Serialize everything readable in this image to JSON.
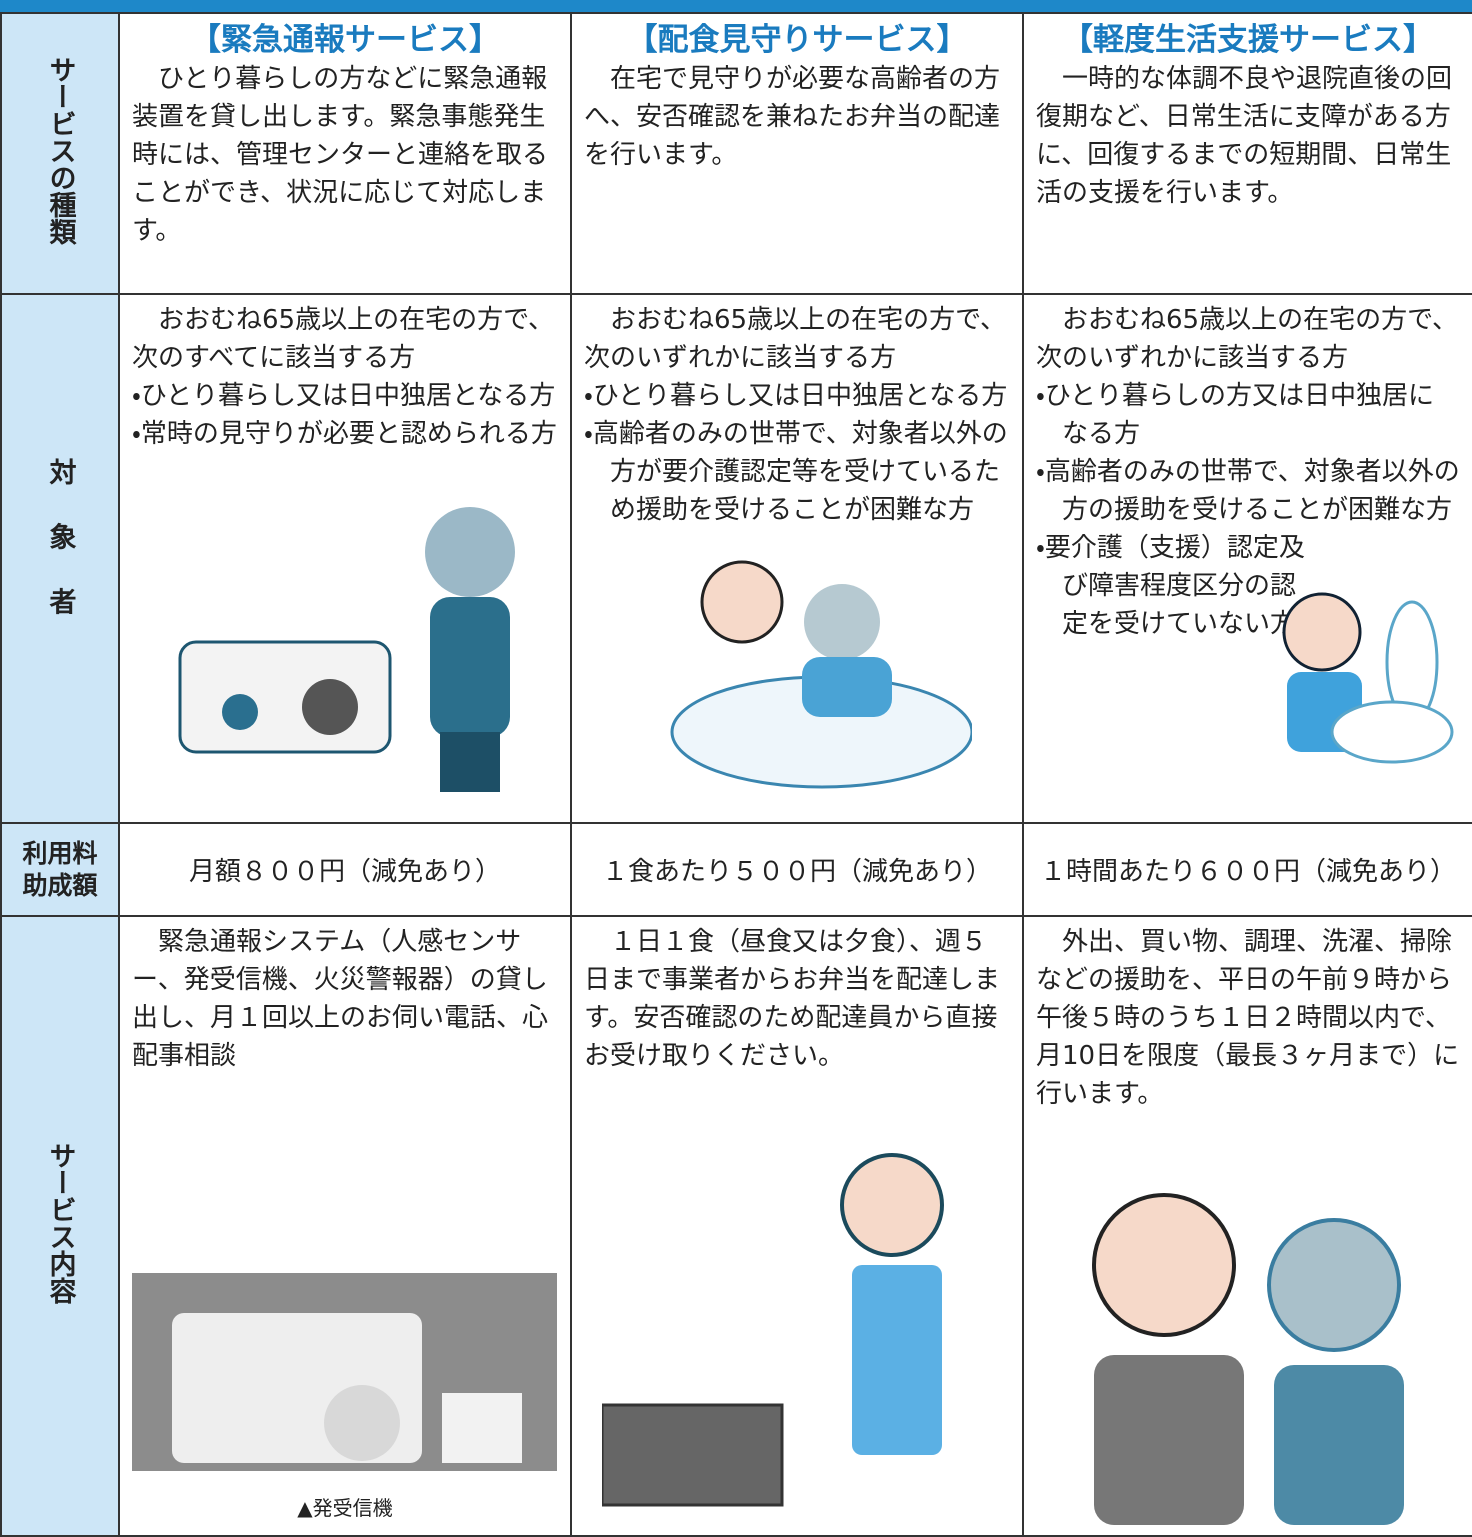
{
  "table": {
    "row_headers": [
      "サービスの種類",
      "対象者",
      [
        "利用料",
        "助成額"
      ],
      "サービス内容"
    ],
    "columns": [
      {
        "title": "【緊急通報サービス】",
        "description": "ひとり暮らしの方などに緊急通報装置を貸し出します。緊急事態発生時には、管理センターと連絡を取ることができ、状況に応じて対応します。",
        "eligibility": {
          "intro": "おおむね65歳以上の在宅の方で、次のすべてに該当する方",
          "bullets": [
            "・ひとり暮らし又は日中独居となる方",
            "・常時の見守りが必要と認められる方"
          ]
        },
        "fee": "月額８００円（減免あり）",
        "content": "緊急通報システム（人感センサー、発受信機、火災警報器）の貸し出し、月１回以上のお伺い電話、心配事相談",
        "photo_caption": "▲発受信機"
      },
      {
        "title": "【配食見守りサービス】",
        "description": "在宅で見守りが必要な高齢者の方へ、安否確認を兼ねたお弁当の配達を行います。",
        "eligibility": {
          "intro": "おおむね65歳以上の在宅の方で、次のいずれかに該当する方",
          "bullets": [
            "・ひとり暮らし又は日中独居となる方",
            "・高齢者のみの世帯で、対象者以外の方が要介護認定等を受けているため援助を受けることが困難な方"
          ]
        },
        "fee": "１食あたり５００円（減免あり）",
        "content": "１日１食（昼食又は夕食）、週５日まで事業者からお弁当を配達します。安否確認のため配達員から直接お受け取りください。"
      },
      {
        "title": "【軽度生活支援サービス】",
        "description": "一時的な体調不良や退院直後の回復期など、日常生活に支障がある方に、回復するまでの短期間、日常生活の支援を行います。",
        "eligibility": {
          "intro": "おおむね65歳以上の在宅の方で、次のいずれかに該当する方",
          "bullets": [
            "・ひとり暮らしの方又は日中独居になる方",
            "・高齢者のみの世帯で、対象者以外の方の援助を受けることが困難な方",
            "・要介護（支援）認定及び障害程度区分の認定を受けていない方"
          ]
        },
        "fee": "１時間あたり６００円（減免あり）",
        "content": "外出、買い物、調理、洗濯、掃除などの援助を、平日の午前９時から午後５時のうち１日２時間以内で、月10日を限度（最長３ヶ月まで）に行います。"
      }
    ]
  }
}
